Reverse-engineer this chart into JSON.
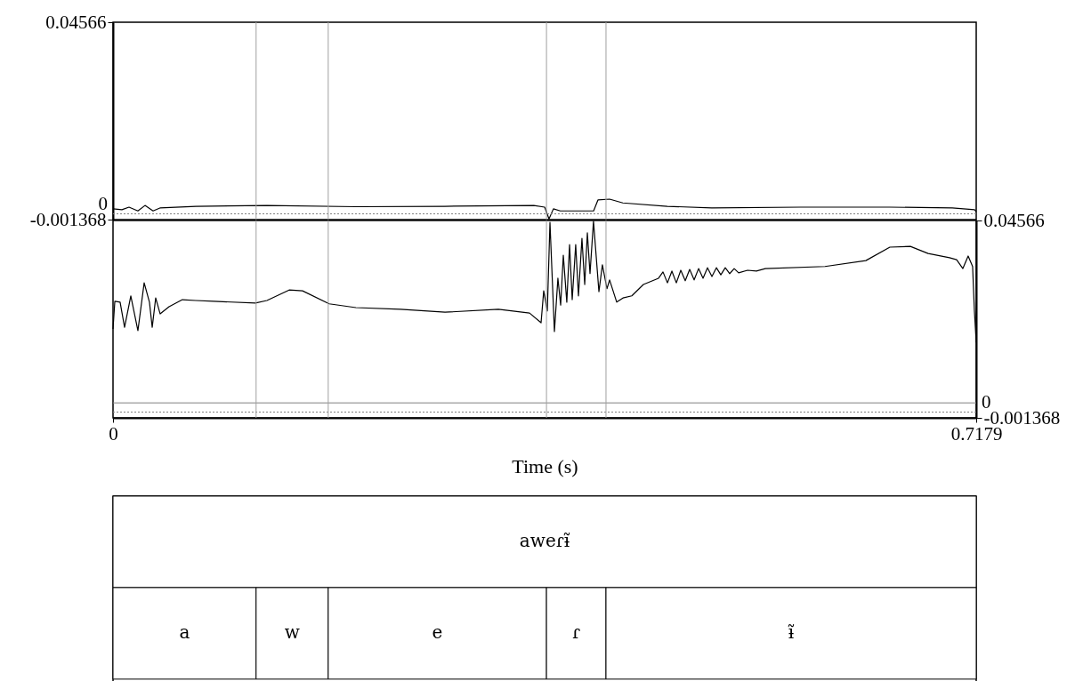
{
  "chart_data": [
    {
      "type": "line",
      "xlim": [
        0,
        0.7179
      ],
      "ylim": [
        -0.001368,
        0.04566
      ],
      "yticks": [
        -0.001368,
        0.04566
      ],
      "tick_labels": "y",
      "grid": false,
      "x": [
        0,
        0.0074,
        0.0133,
        0.0207,
        0.0266,
        0.0333,
        0.039,
        0.069,
        0.128,
        0.202,
        0.276,
        0.35,
        0.359,
        0.3626,
        0.3663,
        0.372,
        0.3997,
        0.4033,
        0.413,
        0.424,
        0.461,
        0.498,
        0.572,
        0.646,
        0.698,
        0.7165,
        0.7179
      ],
      "series": [
        {
          "color": "#000000",
          "values": [
            0.0012,
            0.001,
            0.0016,
            0.0007,
            0.002,
            0.0007,
            0.0014,
            0.0018,
            0.002,
            0.0017,
            0.0018,
            0.002,
            0.0016,
            -0.0012,
            0.0012,
            0.0007,
            0.0007,
            0.0033,
            0.0035,
            0.0026,
            0.0018,
            0.0014,
            0.0016,
            0.0016,
            0.0014,
            0.001,
            0.0005
          ]
        }
      ],
      "ref_lines": [
        {
          "axis": "y",
          "value": 0,
          "label": "0",
          "color": "#808080",
          "line_style": "dotted"
        },
        {
          "axis": "x",
          "value": 0.119,
          "color": "#a0a0a0"
        },
        {
          "axis": "x",
          "value": 0.179,
          "color": "#a0a0a0"
        },
        {
          "axis": "x",
          "value": 0.3605,
          "color": "#a0a0a0"
        },
        {
          "axis": "x",
          "value": 0.41,
          "color": "#a0a0a0"
        }
      ]
    },
    {
      "type": "line",
      "xlim": [
        0,
        0.7179
      ],
      "xticks": [
        0,
        0.7179
      ],
      "xlabel": "Time (s)",
      "y2lim": [
        -0.001368,
        0.04566
      ],
      "y2ticks": [
        -0.001368,
        0.04566
      ],
      "grid": false,
      "x": [
        0,
        0.0015,
        0.0059,
        0.0096,
        0.0148,
        0.0207,
        0.0259,
        0.0303,
        0.0326,
        0.0355,
        0.0392,
        0.0466,
        0.0577,
        0.0688,
        0.0836,
        0.1184,
        0.128,
        0.1465,
        0.1576,
        0.1798,
        0.202,
        0.239,
        0.2761,
        0.3205,
        0.3464,
        0.356,
        0.3582,
        0.3612,
        0.3634,
        0.3671,
        0.37,
        0.3723,
        0.3745,
        0.3774,
        0.3797,
        0.3819,
        0.3848,
        0.3871,
        0.39,
        0.3923,
        0.3945,
        0.3967,
        0.3996,
        0.4041,
        0.407,
        0.4108,
        0.413,
        0.4189,
        0.4241,
        0.4315,
        0.4411,
        0.4537,
        0.4574,
        0.4611,
        0.4648,
        0.4685,
        0.4722,
        0.4759,
        0.4796,
        0.4833,
        0.487,
        0.4907,
        0.4944,
        0.4981,
        0.5018,
        0.5055,
        0.5092,
        0.5129,
        0.5166,
        0.5203,
        0.5277,
        0.5351,
        0.5425,
        0.5921,
        0.6261,
        0.6461,
        0.6631,
        0.6779,
        0.6957,
        0.7016,
        0.7068,
        0.7112,
        0.7149,
        0.7164,
        0.7179
      ],
      "series": [
        {
          "color": "#000000",
          "axis": "y2",
          "values": [
            0.0198,
            0.0264,
            0.0262,
            0.0202,
            0.0277,
            0.0194,
            0.0308,
            0.0262,
            0.0202,
            0.0272,
            0.0234,
            0.0251,
            0.0268,
            0.0266,
            0.0264,
            0.026,
            0.0266,
            0.0291,
            0.0289,
            0.0258,
            0.0249,
            0.0245,
            0.0238,
            0.0245,
            0.0236,
            0.0213,
            0.0289,
            0.0241,
            0.0452,
            0.0192,
            0.0319,
            0.0255,
            0.0374,
            0.0262,
            0.0399,
            0.0268,
            0.0399,
            0.0277,
            0.0414,
            0.0304,
            0.0427,
            0.033,
            0.0455,
            0.0287,
            0.0351,
            0.0294,
            0.0315,
            0.0262,
            0.0272,
            0.0277,
            0.0304,
            0.0319,
            0.0334,
            0.0308,
            0.0336,
            0.0308,
            0.0338,
            0.0313,
            0.034,
            0.0315,
            0.0342,
            0.0319,
            0.0344,
            0.0323,
            0.0344,
            0.0327,
            0.0344,
            0.033,
            0.0342,
            0.0332,
            0.0338,
            0.0336,
            0.0342,
            0.0347,
            0.0361,
            0.0393,
            0.0395,
            0.0378,
            0.0368,
            0.0363,
            0.0342,
            0.0372,
            0.0347,
            0.0241,
            0.0166
          ]
        }
      ],
      "ref_lines": [
        {
          "axis": "y2",
          "value": 0,
          "label": "0",
          "color": "#808080",
          "line_style": "dotted"
        },
        {
          "axis": "y2",
          "value": 0.0022,
          "color": "#808080",
          "line_style": "solid"
        },
        {
          "axis": "x",
          "value": 0.119,
          "color": "#a0a0a0"
        },
        {
          "axis": "x",
          "value": 0.179,
          "color": "#a0a0a0"
        },
        {
          "axis": "x",
          "value": 0.3605,
          "color": "#a0a0a0"
        },
        {
          "axis": "x",
          "value": 0.41,
          "color": "#a0a0a0"
        }
      ],
      "annotations": [
        "aweɾɨ̃",
        "a",
        "w",
        "e",
        "ɾ",
        "ɨ̃"
      ]
    }
  ]
}
